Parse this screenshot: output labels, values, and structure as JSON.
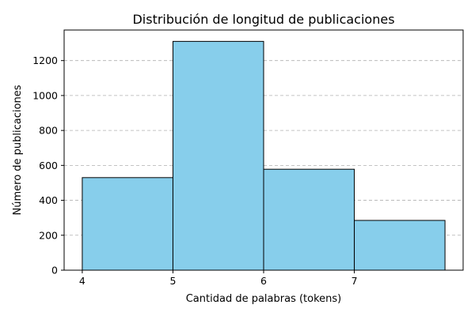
{
  "chart_data": {
    "type": "bar",
    "title": "Distribución de longitud de publicaciones",
    "xlabel": "Cantidad de palabras (tokens)",
    "ylabel": "Número de publicaciones",
    "bins": [
      {
        "start": 4,
        "end": 5,
        "value": 530
      },
      {
        "start": 5,
        "end": 6,
        "value": 1310
      },
      {
        "start": 6,
        "end": 7,
        "value": 578
      },
      {
        "start": 7,
        "end": 8,
        "value": 285
      }
    ],
    "xlim": [
      3.8,
      8.2
    ],
    "ylim": [
      0,
      1375
    ],
    "xticks": [
      4,
      5,
      6,
      7
    ],
    "xtick_labels": [
      "4",
      "5",
      "6",
      "7"
    ],
    "yticks": [
      0,
      200,
      400,
      600,
      800,
      1000,
      1200
    ],
    "ytick_labels": [
      "0",
      "200",
      "400",
      "600",
      "800",
      "1000",
      "1200"
    ],
    "grid": "y-axis dashed",
    "legend": "none",
    "colors": {
      "bar_fill": "#87ceeb",
      "bar_edge": "#000000",
      "grid": "#b0b0b0"
    }
  }
}
